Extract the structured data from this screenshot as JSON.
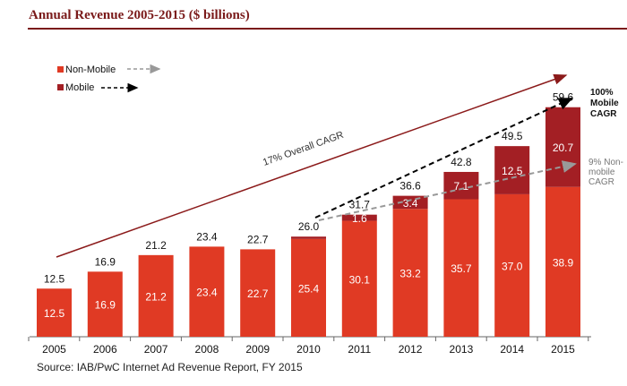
{
  "chart_data": {
    "type": "bar",
    "stacked": true,
    "title": "Annual Revenue 2005-2015 ($ billions)",
    "categories": [
      "2005",
      "2006",
      "2007",
      "2008",
      "2009",
      "2010",
      "2011",
      "2012",
      "2013",
      "2014",
      "2015"
    ],
    "series": [
      {
        "name": "Non-Mobile",
        "color": "#e03a24",
        "values": [
          12.5,
          16.9,
          21.2,
          23.4,
          22.7,
          25.4,
          30.1,
          33.2,
          35.7,
          37.0,
          38.9
        ]
      },
      {
        "name": "Mobile",
        "color": "#a31f24",
        "values": [
          0,
          0,
          0,
          0,
          0,
          0.6,
          1.6,
          3.4,
          7.1,
          12.5,
          20.7
        ]
      }
    ],
    "mobile_labels": [
      null,
      null,
      null,
      null,
      null,
      null,
      "1.6",
      "3.4",
      "7.1",
      "12.5",
      "20.7"
    ],
    "totals": [
      "12.5",
      "16.9",
      "21.2",
      "23.4",
      "22.7",
      "26.0",
      "31.7",
      "36.6",
      "42.8",
      "49.5",
      "59.6"
    ],
    "ylim": [
      0,
      60
    ],
    "grid": false,
    "legend": {
      "placement": "top-left",
      "items": [
        "Non-Mobile",
        "Mobile"
      ]
    },
    "annotations": {
      "overall": "17% Overall CAGR",
      "mobile": [
        "100%",
        "Mobile",
        "CAGR"
      ],
      "nonmobile": [
        "9% Non-",
        "mobile",
        "CAGR"
      ]
    },
    "source": "Source: IAB/PwC Internet Ad Revenue Report, FY 2015"
  }
}
